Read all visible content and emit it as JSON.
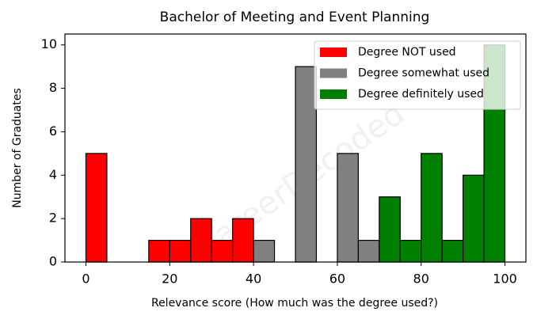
{
  "chart_data": {
    "type": "histogram",
    "title": "Bachelor of Meeting and Event Planning",
    "xlabel": "Relevance score (How much was the degree used?)",
    "ylabel": "Number of Graduates",
    "watermark": "CareerDecoded",
    "bins": [
      0,
      5,
      10,
      15,
      20,
      25,
      30,
      35,
      40,
      45,
      50,
      55,
      60,
      65,
      70,
      75,
      80,
      85,
      90,
      95,
      100
    ],
    "series": [
      {
        "name": "Degree NOT used",
        "color": "#ff0000",
        "values": [
          5,
          0,
          0,
          1,
          1,
          2,
          1,
          2,
          0,
          0,
          0,
          0,
          0,
          0,
          0,
          0,
          0,
          0,
          0,
          0
        ]
      },
      {
        "name": "Degree somewhat used",
        "color": "#808080",
        "values": [
          0,
          0,
          0,
          0,
          0,
          0,
          0,
          0,
          1,
          0,
          9,
          0,
          5,
          1,
          0,
          0,
          0,
          0,
          0,
          0
        ]
      },
      {
        "name": "Degree definitely used",
        "color": "#008000",
        "values": [
          0,
          0,
          0,
          0,
          0,
          0,
          0,
          0,
          0,
          0,
          0,
          0,
          0,
          0,
          3,
          1,
          5,
          1,
          4,
          10
        ]
      }
    ],
    "xlim": [
      -5,
      105
    ],
    "ylim": [
      0,
      10.5
    ],
    "xticks": [
      0,
      20,
      40,
      60,
      80,
      100
    ],
    "yticks": [
      0,
      2,
      4,
      6,
      8,
      10
    ],
    "legend": "upper right"
  }
}
